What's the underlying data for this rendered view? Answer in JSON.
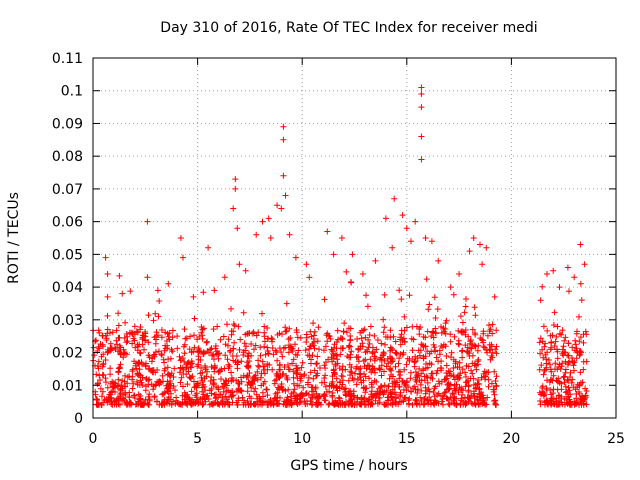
{
  "chart_data": {
    "type": "scatter",
    "title": "Day 310 of 2016, Rate Of TEC Index for receiver medi",
    "xlabel": "GPS time / hours",
    "ylabel": "ROTI / TECUs",
    "xlim": [
      0,
      25
    ],
    "ylim": [
      0,
      0.11
    ],
    "xticks": [
      0,
      5,
      10,
      15,
      20,
      25
    ],
    "xtick_labels": [
      "0",
      "5",
      "10",
      "15",
      "20",
      "25"
    ],
    "yticks": [
      0,
      0.01,
      0.02,
      0.03,
      0.04,
      0.05,
      0.06,
      0.07,
      0.08,
      0.09,
      0.1,
      0.11
    ],
    "ytick_labels": [
      "0",
      "0.01",
      "0.02",
      "0.03",
      "0.04",
      "0.05",
      "0.06",
      "0.07",
      "0.08",
      "0.09",
      "0.1",
      "0.11"
    ],
    "grid": true,
    "marker": "+",
    "color": "#ff0000",
    "data_gap_hours": [
      19.3,
      21.3
    ],
    "series": [
      {
        "points": [
          [
            0.3,
            0.026
          ],
          [
            0.6,
            0.049
          ],
          [
            0.7,
            0.044
          ],
          [
            0.7,
            0.037
          ],
          [
            1.2,
            0.032
          ],
          [
            1.4,
            0.038
          ],
          [
            2.0,
            0.028
          ],
          [
            2.6,
            0.06
          ],
          [
            2.6,
            0.043
          ],
          [
            3.1,
            0.039
          ],
          [
            3.6,
            0.041
          ],
          [
            4.2,
            0.055
          ],
          [
            4.3,
            0.049
          ],
          [
            4.8,
            0.037
          ],
          [
            5.5,
            0.052
          ],
          [
            5.8,
            0.039
          ],
          [
            6.3,
            0.043
          ],
          [
            6.8,
            0.073
          ],
          [
            6.8,
            0.07
          ],
          [
            6.7,
            0.064
          ],
          [
            6.9,
            0.058
          ],
          [
            7.0,
            0.047
          ],
          [
            7.3,
            0.045
          ],
          [
            7.8,
            0.056
          ],
          [
            8.1,
            0.06
          ],
          [
            8.4,
            0.061
          ],
          [
            8.5,
            0.055
          ],
          [
            8.8,
            0.065
          ],
          [
            9.0,
            0.064
          ],
          [
            9.1,
            0.089
          ],
          [
            9.1,
            0.085
          ],
          [
            9.1,
            0.074
          ],
          [
            9.2,
            0.068
          ],
          [
            9.4,
            0.056
          ],
          [
            9.7,
            0.049
          ],
          [
            10.2,
            0.047
          ],
          [
            11.2,
            0.057
          ],
          [
            11.5,
            0.05
          ],
          [
            11.9,
            0.055
          ],
          [
            12.4,
            0.05
          ],
          [
            12.9,
            0.044
          ],
          [
            13.5,
            0.048
          ],
          [
            14.0,
            0.061
          ],
          [
            14.3,
            0.052
          ],
          [
            14.4,
            0.067
          ],
          [
            14.8,
            0.062
          ],
          [
            15.0,
            0.058
          ],
          [
            15.2,
            0.054
          ],
          [
            15.4,
            0.06
          ],
          [
            15.7,
            0.101
          ],
          [
            15.7,
            0.099
          ],
          [
            15.7,
            0.095
          ],
          [
            15.7,
            0.086
          ],
          [
            15.7,
            0.079
          ],
          [
            15.9,
            0.055
          ],
          [
            16.2,
            0.054
          ],
          [
            16.5,
            0.048
          ],
          [
            17.1,
            0.04
          ],
          [
            17.5,
            0.044
          ],
          [
            18.0,
            0.051
          ],
          [
            18.2,
            0.055
          ],
          [
            18.5,
            0.053
          ],
          [
            18.6,
            0.047
          ],
          [
            18.8,
            0.052
          ],
          [
            19.2,
            0.037
          ],
          [
            21.4,
            0.036
          ],
          [
            21.7,
            0.044
          ],
          [
            22.0,
            0.045
          ],
          [
            22.3,
            0.04
          ],
          [
            22.7,
            0.046
          ],
          [
            23.0,
            0.043
          ],
          [
            23.3,
            0.053
          ],
          [
            23.5,
            0.047
          ]
        ]
      }
    ]
  }
}
